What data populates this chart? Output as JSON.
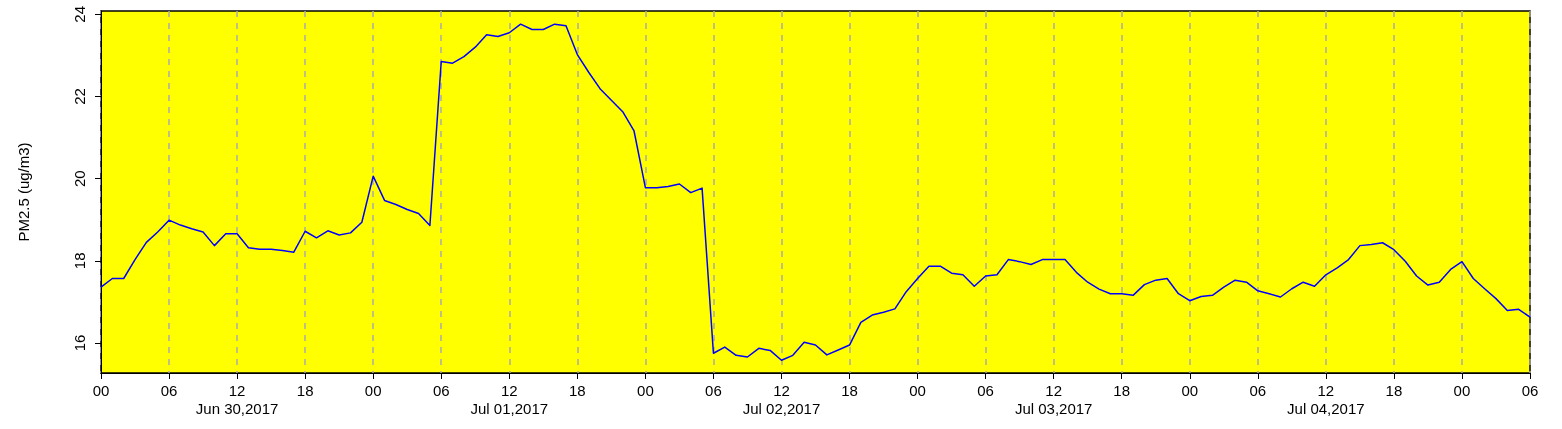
{
  "chart_data": {
    "type": "line",
    "ylabel": "PM2.5 (ug/m3)",
    "x": [
      "2017-06-30T00:00",
      "2017-06-30T01:00",
      "2017-06-30T02:00",
      "2017-06-30T03:00",
      "2017-06-30T04:00",
      "2017-06-30T05:00",
      "2017-06-30T06:00",
      "2017-06-30T07:00",
      "2017-06-30T08:00",
      "2017-06-30T09:00",
      "2017-06-30T10:00",
      "2017-06-30T11:00",
      "2017-06-30T12:00",
      "2017-06-30T13:00",
      "2017-06-30T14:00",
      "2017-06-30T15:00",
      "2017-06-30T16:00",
      "2017-06-30T17:00",
      "2017-06-30T18:00",
      "2017-06-30T19:00",
      "2017-06-30T20:00",
      "2017-06-30T21:00",
      "2017-06-30T22:00",
      "2017-06-30T23:00",
      "2017-07-01T00:00",
      "2017-07-01T01:00",
      "2017-07-01T02:00",
      "2017-07-01T03:00",
      "2017-07-01T04:00",
      "2017-07-01T05:00",
      "2017-07-01T06:00",
      "2017-07-01T07:00",
      "2017-07-01T08:00",
      "2017-07-01T09:00",
      "2017-07-01T10:00",
      "2017-07-01T11:00",
      "2017-07-01T12:00",
      "2017-07-01T13:00",
      "2017-07-01T14:00",
      "2017-07-01T15:00",
      "2017-07-01T16:00",
      "2017-07-01T17:00",
      "2017-07-01T18:00",
      "2017-07-01T19:00",
      "2017-07-01T20:00",
      "2017-07-01T21:00",
      "2017-07-01T22:00",
      "2017-07-01T23:00",
      "2017-07-02T00:00",
      "2017-07-02T01:00",
      "2017-07-02T02:00",
      "2017-07-02T03:00",
      "2017-07-02T04:00",
      "2017-07-02T05:00",
      "2017-07-02T06:00",
      "2017-07-02T07:00",
      "2017-07-02T08:00",
      "2017-07-02T09:00",
      "2017-07-02T10:00",
      "2017-07-02T11:00",
      "2017-07-02T12:00",
      "2017-07-02T13:00",
      "2017-07-02T14:00",
      "2017-07-02T15:00",
      "2017-07-02T16:00",
      "2017-07-02T17:00",
      "2017-07-02T18:00",
      "2017-07-02T19:00",
      "2017-07-02T20:00",
      "2017-07-02T21:00",
      "2017-07-02T22:00",
      "2017-07-02T23:00",
      "2017-07-03T00:00",
      "2017-07-03T01:00",
      "2017-07-03T02:00",
      "2017-07-03T03:00",
      "2017-07-03T04:00",
      "2017-07-03T05:00",
      "2017-07-03T06:00",
      "2017-07-03T07:00",
      "2017-07-03T08:00",
      "2017-07-03T09:00",
      "2017-07-03T10:00",
      "2017-07-03T11:00",
      "2017-07-03T12:00",
      "2017-07-03T13:00",
      "2017-07-03T14:00",
      "2017-07-03T15:00",
      "2017-07-03T16:00",
      "2017-07-03T17:00",
      "2017-07-03T18:00",
      "2017-07-03T19:00",
      "2017-07-03T20:00",
      "2017-07-03T21:00",
      "2017-07-03T22:00",
      "2017-07-03T23:00",
      "2017-07-04T00:00",
      "2017-07-04T01:00",
      "2017-07-04T02:00",
      "2017-07-04T03:00",
      "2017-07-04T04:00",
      "2017-07-04T05:00",
      "2017-07-04T06:00",
      "2017-07-04T07:00",
      "2017-07-04T08:00",
      "2017-07-04T09:00",
      "2017-07-04T10:00",
      "2017-07-04T11:00",
      "2017-07-04T12:00",
      "2017-07-04T13:00",
      "2017-07-04T14:00",
      "2017-07-04T15:00",
      "2017-07-04T16:00",
      "2017-07-04T17:00",
      "2017-07-04T18:00",
      "2017-07-04T19:00",
      "2017-07-04T20:00",
      "2017-07-04T21:00",
      "2017-07-04T22:00",
      "2017-07-04T23:00",
      "2017-07-05T00:00",
      "2017-07-05T01:00",
      "2017-07-05T02:00",
      "2017-07-05T03:00",
      "2017-07-05T04:00",
      "2017-07-05T05:00",
      "2017-07-05T06:00"
    ],
    "series": [
      {
        "color": "#0000ff",
        "values": [
          17.36,
          17.57,
          17.57,
          18.03,
          18.45,
          18.7,
          18.99,
          18.87,
          18.78,
          18.7,
          18.37,
          18.66,
          18.66,
          18.32,
          18.28,
          18.28,
          18.25,
          18.21,
          18.72,
          18.56,
          18.73,
          18.63,
          18.68,
          18.94,
          20.06,
          19.47,
          19.37,
          19.25,
          19.15,
          18.86,
          22.85,
          22.81,
          22.97,
          23.2,
          23.5,
          23.46,
          23.55,
          23.76,
          23.63,
          23.63,
          23.76,
          23.72,
          23.02,
          22.59,
          22.19,
          21.91,
          21.63,
          21.16,
          19.78,
          19.78,
          19.81,
          19.87,
          19.66,
          19.77,
          15.75,
          15.9,
          15.7,
          15.66,
          15.87,
          15.82,
          15.58,
          15.7,
          16.02,
          15.95,
          15.71,
          15.83,
          15.95,
          16.5,
          16.68,
          16.75,
          16.83,
          17.25,
          17.57,
          17.87,
          17.87,
          17.7,
          17.66,
          17.38,
          17.63,
          17.66,
          18.03,
          17.98,
          17.91,
          18.03,
          18.03,
          18.03,
          17.72,
          17.48,
          17.31,
          17.2,
          17.2,
          17.16,
          17.42,
          17.53,
          17.57,
          17.2,
          17.03,
          17.13,
          17.16,
          17.36,
          17.53,
          17.48,
          17.27,
          17.2,
          17.12,
          17.32,
          17.48,
          17.38,
          17.66,
          17.83,
          18.03,
          18.37,
          18.4,
          18.44,
          18.27,
          17.99,
          17.63,
          17.41,
          17.48,
          17.79,
          17.98,
          17.57,
          17.32,
          17.08,
          16.79,
          16.82,
          16.63
        ]
      }
    ],
    "xlim": [
      "2017-06-30T00:00",
      "2017-07-05T06:00"
    ],
    "xticks": [
      {
        "value": "2017-06-30T00:00",
        "label": "00"
      },
      {
        "value": "2017-06-30T06:00",
        "label": "06"
      },
      {
        "value": "2017-06-30T12:00",
        "label": "12\nJun 30,2017"
      },
      {
        "value": "2017-06-30T18:00",
        "label": "18"
      },
      {
        "value": "2017-07-01T00:00",
        "label": "00"
      },
      {
        "value": "2017-07-01T06:00",
        "label": "06"
      },
      {
        "value": "2017-07-01T12:00",
        "label": "12\nJul 01,2017"
      },
      {
        "value": "2017-07-01T18:00",
        "label": "18"
      },
      {
        "value": "2017-07-02T00:00",
        "label": "00"
      },
      {
        "value": "2017-07-02T06:00",
        "label": "06"
      },
      {
        "value": "2017-07-02T12:00",
        "label": "12\nJul 02,2017"
      },
      {
        "value": "2017-07-02T18:00",
        "label": "18"
      },
      {
        "value": "2017-07-03T00:00",
        "label": "00"
      },
      {
        "value": "2017-07-03T06:00",
        "label": "06"
      },
      {
        "value": "2017-07-03T12:00",
        "label": "12\nJul 03,2017"
      },
      {
        "value": "2017-07-03T18:00",
        "label": "18"
      },
      {
        "value": "2017-07-04T00:00",
        "label": "00"
      },
      {
        "value": "2017-07-04T06:00",
        "label": "06"
      },
      {
        "value": "2017-07-04T12:00",
        "label": "12\nJul 04,2017"
      },
      {
        "value": "2017-07-04T18:00",
        "label": "18"
      },
      {
        "value": "2017-07-05T00:00",
        "label": "00"
      },
      {
        "value": "2017-07-05T06:00",
        "label": "06"
      }
    ],
    "ylim": [
      15.27,
      24.08
    ],
    "yticks": [
      16,
      18,
      20,
      22,
      24
    ],
    "grid": "x",
    "marker": "none",
    "line_style": "solid"
  }
}
